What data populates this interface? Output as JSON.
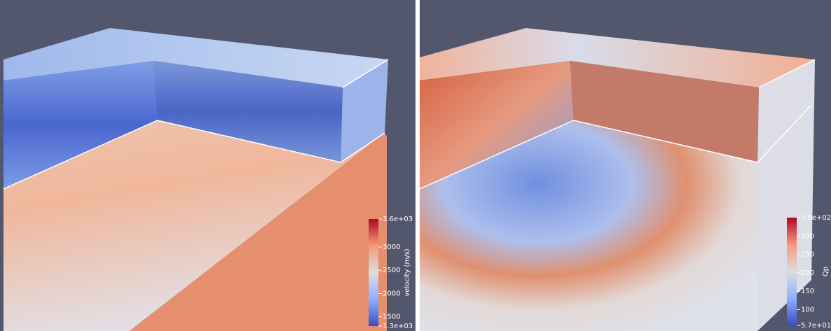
{
  "panels": [
    {
      "colorbar": {
        "title": "velocity (m/s)",
        "ticks": [
          {
            "value": 3600,
            "label": "3.6e+03"
          },
          3000,
          2500,
          2000,
          1500,
          {
            "value": 1300,
            "label": "1.3e+03"
          }
        ]
      }
    },
    {
      "colorbar": {
        "title": "Qp",
        "ticks": [
          {
            "value": 350,
            "label": "3.5e+02"
          },
          300,
          250,
          200,
          150,
          100,
          {
            "value": 57,
            "label": "5.7e+01"
          }
        ]
      }
    }
  ]
}
